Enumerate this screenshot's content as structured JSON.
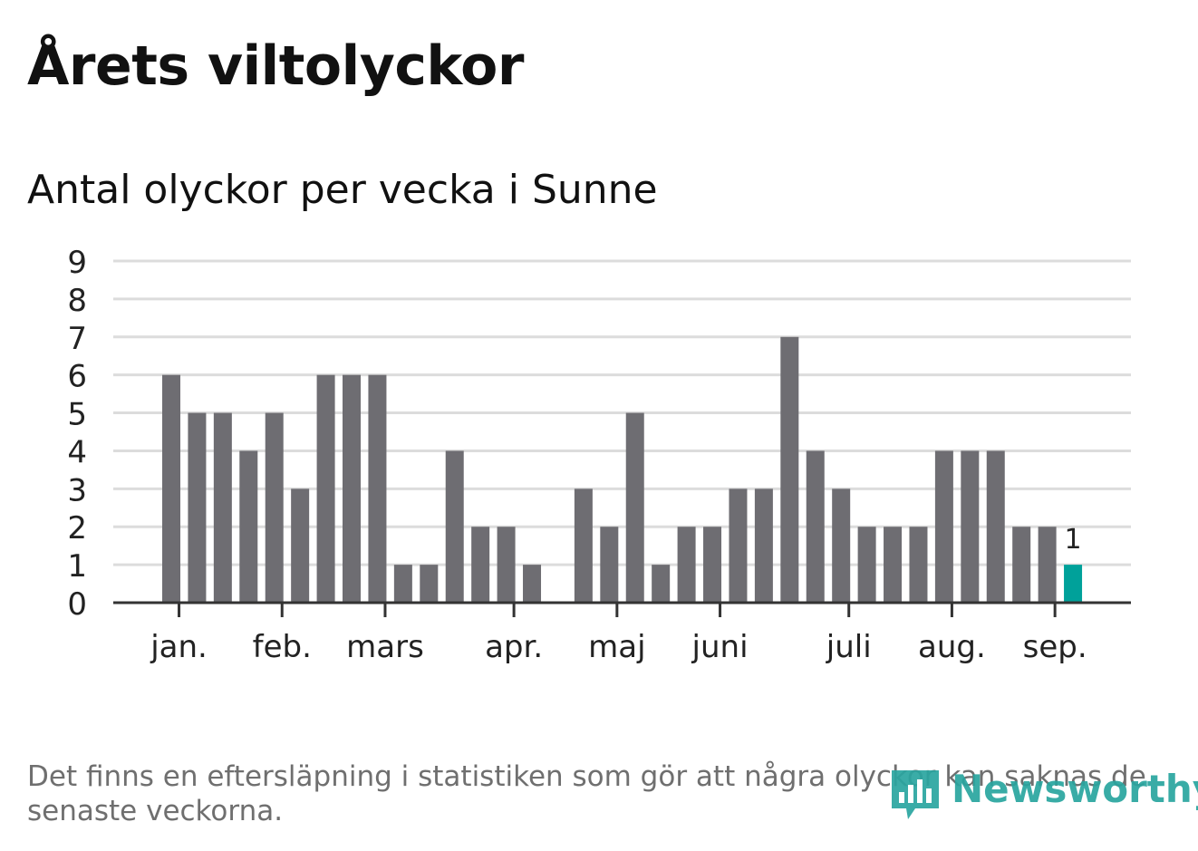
{
  "title": "Årets viltolyckor",
  "subtitle": "Antal olyckor per vecka i Sunne",
  "note": "Det finns en eftersläpning i statistiken som gör att några olyckor kan saknas de senaste veckorna.",
  "brand": {
    "name": "Newsworthy",
    "color": "#29a59f"
  },
  "chart_data": {
    "type": "bar",
    "title": "Antal olyckor per vecka i Sunne",
    "xlabel": "",
    "ylabel": "",
    "ylim": [
      0,
      9
    ],
    "yticks": [
      0,
      1,
      2,
      3,
      4,
      5,
      6,
      7,
      8,
      9
    ],
    "grid": true,
    "bar_color": "#6e6d72",
    "highlight_color": "#00a19a",
    "values": [
      6,
      5,
      5,
      4,
      5,
      3,
      6,
      6,
      6,
      1,
      1,
      4,
      2,
      2,
      1,
      0,
      3,
      2,
      5,
      1,
      2,
      2,
      3,
      3,
      7,
      4,
      3,
      2,
      2,
      2,
      4,
      4,
      4,
      2,
      2,
      1
    ],
    "highlight_last": true,
    "highlight_label": "1",
    "month_labels": [
      {
        "label": "jan.",
        "week": 0.3
      },
      {
        "label": "feb.",
        "week": 4.3
      },
      {
        "label": "mars",
        "week": 8.3
      },
      {
        "label": "apr.",
        "week": 13.3
      },
      {
        "label": "maj",
        "week": 17.3
      },
      {
        "label": "juni",
        "week": 21.3
      },
      {
        "label": "juli",
        "week": 26.3
      },
      {
        "label": "aug.",
        "week": 30.3
      },
      {
        "label": "sep.",
        "week": 34.3
      }
    ]
  }
}
